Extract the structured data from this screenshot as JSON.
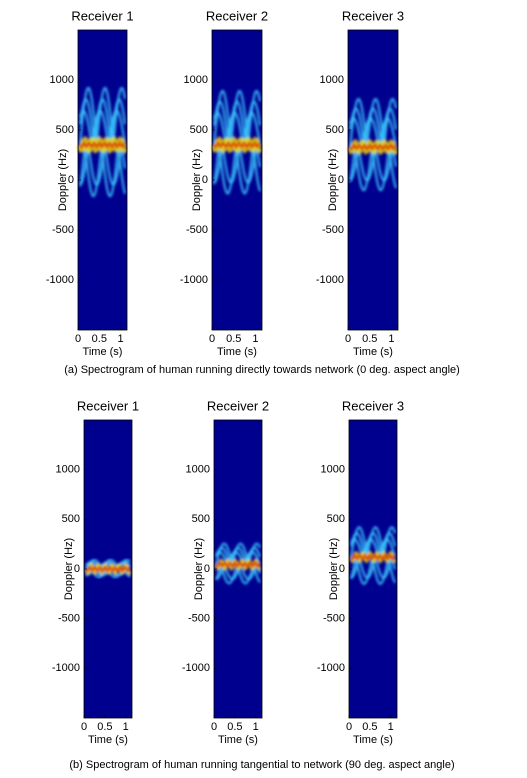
{
  "chart_data": [
    {
      "type": "spectrogram",
      "title": "Receiver 1",
      "xlabel": "Time (s)",
      "ylabel": "Doppler (Hz)",
      "xlim": [
        0,
        1.15
      ],
      "ylim": [
        -1500,
        1500
      ],
      "xticks": [
        0,
        0.5,
        1
      ],
      "yticks": [
        -1000,
        -500,
        0,
        500,
        1000
      ]
    },
    {
      "type": "spectrogram",
      "title": "Receiver 2",
      "xlabel": "Time (s)",
      "ylabel": "Doppler (Hz)",
      "xlim": [
        0,
        1.15
      ],
      "ylim": [
        -1500,
        1500
      ],
      "xticks": [
        0,
        0.5,
        1
      ],
      "yticks": [
        -1000,
        -500,
        0,
        500,
        1000
      ]
    },
    {
      "type": "spectrogram",
      "title": "Receiver 3",
      "xlabel": "Time (s)",
      "ylabel": "Doppler (Hz)",
      "xlim": [
        0,
        1.15
      ],
      "ylim": [
        -1500,
        1500
      ],
      "xticks": [
        0,
        0.5,
        1
      ],
      "yticks": [
        -1000,
        -500,
        0,
        500,
        1000
      ]
    },
    {
      "type": "spectrogram",
      "title": "Receiver 1",
      "xlabel": "Time (s)",
      "ylabel": "Doppler (Hz)",
      "xlim": [
        0,
        1.15
      ],
      "ylim": [
        -1500,
        1500
      ],
      "xticks": [
        0,
        0.5,
        1
      ],
      "yticks": [
        -1000,
        -500,
        0,
        500,
        1000
      ]
    },
    {
      "type": "spectrogram",
      "title": "Receiver 2",
      "xlabel": "Time (s)",
      "ylabel": "Doppler (Hz)",
      "xlim": [
        0,
        1.15
      ],
      "ylim": [
        -1500,
        1500
      ],
      "xticks": [
        0,
        0.5,
        1
      ],
      "yticks": [
        -1000,
        -500,
        0,
        500,
        1000
      ]
    },
    {
      "type": "spectrogram",
      "title": "Receiver 3",
      "xlabel": "Time (s)",
      "ylabel": "Doppler (Hz)",
      "xlim": [
        0,
        1.15
      ],
      "ylim": [
        -1500,
        1500
      ],
      "xticks": [
        0,
        0.5,
        1
      ],
      "yticks": [
        -1000,
        -500,
        0,
        500,
        1000
      ]
    }
  ],
  "captions": [
    "(a)  Spectrogram of human running directly towards network (0 deg. aspect angle)",
    "(b)  Spectrogram of human running tangential to network (90 deg. aspect angle)"
  ]
}
